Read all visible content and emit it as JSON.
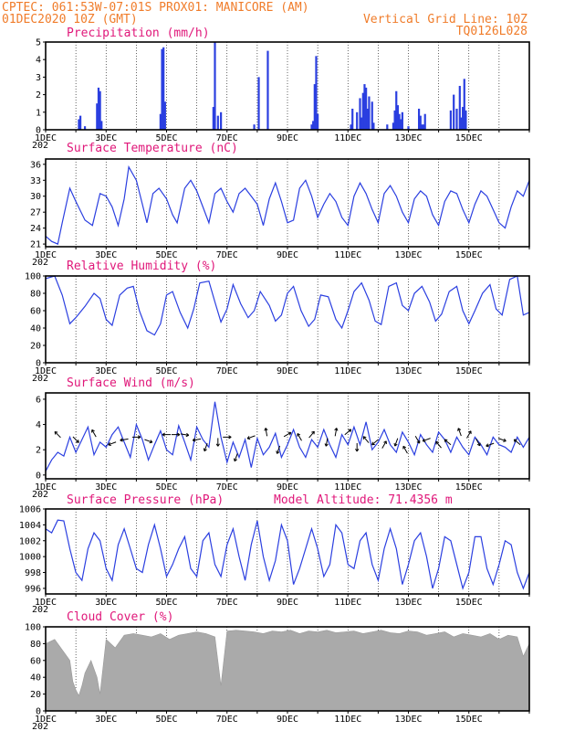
{
  "header": {
    "left_line1": "CPTEC:  061:53W-07:01S  PROX01: MANICORE (AM)",
    "left_line2": "01DEC2020 10Z (GMT)",
    "right_line2": "Vertical Grid Line: 10Z",
    "right_line3": "TQ0126L028"
  },
  "colors": {
    "header": "#f07c2a",
    "panel_title": "#e0187a",
    "series": "#2b3fe0",
    "cloud": "#aaaaaa",
    "arrow": "#000000"
  },
  "x_axis": {
    "days": 16,
    "tick_labels": [
      "1DEC",
      "3DEC",
      "5DEC",
      "7DEC",
      "9DEC",
      "11DEC",
      "13DEC",
      "15DEC"
    ],
    "year_fragment": "202"
  },
  "chart_data": [
    {
      "type": "bar",
      "title": "Precipitation (mm/h)",
      "ylim": [
        0,
        5
      ],
      "yticks": [
        0,
        1,
        2,
        3,
        4,
        5
      ],
      "x_unit": "days since 01DEC2020 10Z",
      "x": [
        1.1,
        1.15,
        1.3,
        1.7,
        1.75,
        1.8,
        1.85,
        3.8,
        3.85,
        3.9,
        3.95,
        5.55,
        5.6,
        5.7,
        5.8,
        6.9,
        7.05,
        7.35,
        8.8,
        8.85,
        8.9,
        8.95,
        9.0,
        10.1,
        10.15,
        10.3,
        10.4,
        10.45,
        10.5,
        10.55,
        10.6,
        10.65,
        10.7,
        10.8,
        10.85,
        11.3,
        11.5,
        11.55,
        11.6,
        11.65,
        11.7,
        11.75,
        11.8,
        12.0,
        12.35,
        12.4,
        12.45,
        12.5,
        12.55,
        13.4,
        13.5,
        13.6,
        13.7,
        13.75,
        13.8,
        13.85,
        13.9
      ],
      "values": [
        0.6,
        0.8,
        0.2,
        1.5,
        2.4,
        2.2,
        0.5,
        0.9,
        4.6,
        4.7,
        1.6,
        1.3,
        5.0,
        0.8,
        1.0,
        0.3,
        3.0,
        4.5,
        0.3,
        0.5,
        2.6,
        4.2,
        0.9,
        0.3,
        1.2,
        1.0,
        1.8,
        0.7,
        2.1,
        2.6,
        2.4,
        1.2,
        1.9,
        1.6,
        0.4,
        0.3,
        0.4,
        1.1,
        2.2,
        1.4,
        0.9,
        0.6,
        1.0,
        0.2,
        1.2,
        0.8,
        0.3,
        0.3,
        0.9,
        1.1,
        2.0,
        1.2,
        2.5,
        0.7,
        1.3,
        2.9,
        1.1
      ]
    },
    {
      "type": "line",
      "title": "Surface Temperature (nC)",
      "ylim": [
        20.5,
        37
      ],
      "yticks": [
        21,
        24,
        27,
        30,
        33,
        36
      ],
      "x_unit": "days since 01DEC2020 10Z",
      "x": [
        0,
        0.2,
        0.4,
        0.55,
        0.8,
        1.0,
        1.3,
        1.55,
        1.8,
        2.0,
        2.2,
        2.4,
        2.6,
        2.75,
        3.0,
        3.2,
        3.35,
        3.55,
        3.75,
        4.0,
        4.2,
        4.35,
        4.6,
        4.8,
        5.0,
        5.2,
        5.4,
        5.6,
        5.8,
        6.0,
        6.2,
        6.4,
        6.6,
        6.8,
        7.0,
        7.2,
        7.4,
        7.6,
        7.8,
        8.0,
        8.2,
        8.4,
        8.6,
        8.8,
        9.0,
        9.2,
        9.4,
        9.6,
        9.8,
        10.0,
        10.2,
        10.4,
        10.6,
        10.8,
        11.0,
        11.2,
        11.4,
        11.6,
        11.8,
        12.0,
        12.2,
        12.4,
        12.6,
        12.8,
        13.0,
        13.2,
        13.4,
        13.6,
        13.8,
        14.0,
        14.2,
        14.4,
        14.6,
        14.8,
        15.0,
        15.2,
        15.4,
        15.6,
        15.8,
        16.0
      ],
      "values": [
        22.5,
        21.5,
        21.0,
        25.0,
        31.5,
        29.0,
        25.5,
        24.5,
        30.5,
        30.0,
        28.0,
        24.5,
        29.5,
        35.5,
        33.0,
        28.5,
        25.0,
        30.5,
        31.5,
        29.5,
        26.5,
        25.0,
        31.5,
        33.0,
        31.0,
        28.0,
        25.0,
        30.5,
        31.5,
        29.0,
        27.0,
        30.5,
        31.5,
        30.0,
        28.5,
        24.5,
        29.5,
        32.5,
        29.0,
        25.0,
        25.5,
        31.5,
        33.0,
        30.0,
        26.0,
        28.5,
        30.5,
        29.0,
        26.0,
        24.5,
        30.0,
        32.5,
        30.5,
        27.5,
        25.0,
        30.5,
        32.0,
        30.0,
        27.0,
        25.0,
        29.5,
        31.0,
        30.0,
        26.5,
        24.5,
        29.0,
        31.0,
        30.5,
        27.5,
        25.0,
        28.5,
        31.0,
        30.0,
        27.5,
        25.0,
        24.0,
        28.0,
        31.0,
        30.0,
        33.0
      ]
    },
    {
      "type": "line",
      "title": "Relative Humidity (%)",
      "ylim": [
        0,
        100
      ],
      "yticks": [
        0,
        20,
        40,
        60,
        80,
        100
      ],
      "x_unit": "days since 01DEC2020 10Z",
      "x": [
        0,
        0.3,
        0.55,
        0.8,
        1.0,
        1.3,
        1.6,
        1.8,
        2.0,
        2.2,
        2.45,
        2.7,
        2.9,
        3.1,
        3.35,
        3.6,
        3.8,
        4.0,
        4.2,
        4.45,
        4.7,
        4.9,
        5.1,
        5.4,
        5.6,
        5.8,
        6.0,
        6.2,
        6.45,
        6.7,
        6.9,
        7.1,
        7.4,
        7.6,
        7.8,
        8.0,
        8.2,
        8.45,
        8.7,
        8.9,
        9.1,
        9.35,
        9.6,
        9.8,
        10.0,
        10.2,
        10.45,
        10.7,
        10.9,
        11.1,
        11.35,
        11.6,
        11.8,
        12.0,
        12.2,
        12.45,
        12.7,
        12.9,
        13.1,
        13.35,
        13.6,
        13.8,
        14.0,
        14.2,
        14.45,
        14.7,
        14.9,
        15.1,
        15.35,
        15.6,
        15.8,
        16.0
      ],
      "values": [
        97,
        100,
        78,
        45,
        52,
        65,
        80,
        74,
        50,
        43,
        78,
        86,
        88,
        60,
        37,
        32,
        45,
        78,
        82,
        58,
        40,
        62,
        92,
        94,
        70,
        47,
        62,
        90,
        68,
        52,
        60,
        82,
        66,
        48,
        55,
        80,
        88,
        60,
        42,
        50,
        78,
        76,
        50,
        40,
        60,
        82,
        92,
        72,
        48,
        44,
        88,
        92,
        66,
        60,
        80,
        88,
        70,
        48,
        56,
        82,
        88,
        60,
        45,
        60,
        80,
        90,
        62,
        55,
        96,
        100,
        55,
        58
      ]
    },
    {
      "type": "line",
      "title": "Surface Wind (m/s)",
      "ylim": [
        -0.3,
        6.5
      ],
      "yticks": [
        0,
        2,
        4,
        6
      ],
      "x_unit": "days since 01DEC2020 10Z",
      "x": [
        0,
        0.2,
        0.4,
        0.6,
        0.8,
        1.0,
        1.2,
        1.4,
        1.6,
        1.8,
        2.0,
        2.2,
        2.4,
        2.6,
        2.8,
        3.0,
        3.2,
        3.4,
        3.6,
        3.8,
        4.0,
        4.2,
        4.4,
        4.6,
        4.8,
        5.0,
        5.2,
        5.4,
        5.6,
        5.8,
        6.0,
        6.2,
        6.4,
        6.6,
        6.8,
        7.0,
        7.2,
        7.4,
        7.6,
        7.8,
        8.0,
        8.2,
        8.4,
        8.6,
        8.8,
        9.0,
        9.2,
        9.4,
        9.6,
        9.8,
        10.0,
        10.2,
        10.4,
        10.6,
        10.8,
        11.0,
        11.2,
        11.4,
        11.6,
        11.8,
        12.0,
        12.2,
        12.4,
        12.6,
        12.8,
        13.0,
        13.2,
        13.4,
        13.6,
        13.8,
        14.0,
        14.2,
        14.4,
        14.6,
        14.8,
        15.0,
        15.2,
        15.4,
        15.6,
        15.8,
        16.0
      ],
      "values": [
        0.3,
        1.2,
        1.8,
        1.5,
        3.0,
        1.8,
        2.8,
        3.8,
        1.6,
        2.6,
        2.2,
        3.2,
        3.8,
        2.6,
        1.4,
        4.0,
        2.8,
        1.2,
        2.4,
        3.5,
        2.0,
        1.6,
        3.9,
        2.6,
        1.2,
        3.8,
        2.8,
        2.2,
        5.8,
        3.0,
        1.0,
        2.6,
        1.4,
        2.8,
        0.6,
        2.9,
        1.6,
        2.2,
        3.3,
        1.4,
        2.4,
        3.6,
        2.2,
        1.4,
        2.8,
        2.2,
        3.6,
        2.4,
        1.4,
        3.2,
        2.4,
        3.8,
        2.4,
        4.2,
        2.0,
        2.6,
        3.6,
        2.4,
        1.8,
        3.4,
        2.6,
        1.6,
        3.2,
        2.4,
        1.8,
        3.4,
        2.8,
        1.8,
        3.0,
        2.2,
        1.6,
        3.0,
        2.4,
        1.6,
        3.0,
        2.4,
        2.2,
        1.8,
        3.0,
        2.2,
        3.0
      ],
      "arrows_x": [
        0.4,
        1.0,
        1.6,
        2.2,
        2.6,
        3.0,
        3.4,
        4.0,
        4.3,
        4.6,
        5.0,
        5.3,
        5.7,
        6.0,
        6.3,
        6.8,
        7.3,
        7.7,
        8.0,
        8.4,
        8.8,
        9.3,
        9.6,
        10.0,
        10.3,
        10.6,
        10.9,
        11.2,
        11.6,
        11.9,
        12.3,
        12.6,
        13.0,
        13.3,
        13.7,
        14.0,
        14.3,
        14.7,
        15.1,
        15.6
      ],
      "arrows_y": [
        3.2,
        2.8,
        3.3,
        2.5,
        2.8,
        3.0,
        2.7,
        3.2,
        3.2,
        3.2,
        2.8,
        2.2,
        2.6,
        3.0,
        1.4,
        3.0,
        3.4,
        2.0,
        3.2,
        3.0,
        3.2,
        2.6,
        3.4,
        3.4,
        2.2,
        2.8,
        2.6,
        2.4,
        2.6,
        2.0,
        2.8,
        2.8,
        2.4,
        2.6,
        3.4,
        3.2,
        2.6,
        2.4,
        2.8,
        2.6
      ],
      "arrows_dir": [
        135,
        315,
        120,
        200,
        190,
        0,
        340,
        180,
        0,
        350,
        190,
        250,
        270,
        0,
        250,
        200,
        100,
        250,
        30,
        120,
        50,
        260,
        80,
        40,
        270,
        130,
        220,
        60,
        250,
        120,
        300,
        200,
        130,
        140,
        110,
        60,
        300,
        200,
        340,
        140
      ]
    },
    {
      "type": "line",
      "title": "Surface Pressure (hPa)",
      "annotation": "Model Altitude: 71.4356 m",
      "ylim": [
        995.3,
        1006
      ],
      "yticks": [
        996,
        998,
        1000,
        1002,
        1004,
        1006
      ],
      "x_unit": "days since 01DEC2020 10Z",
      "x": [
        0,
        0.2,
        0.4,
        0.6,
        0.8,
        1.0,
        1.2,
        1.4,
        1.6,
        1.8,
        2.0,
        2.2,
        2.4,
        2.6,
        2.8,
        3.0,
        3.2,
        3.4,
        3.6,
        3.8,
        4.0,
        4.2,
        4.4,
        4.6,
        4.8,
        5.0,
        5.2,
        5.4,
        5.6,
        5.8,
        6.0,
        6.2,
        6.4,
        6.6,
        6.8,
        7.0,
        7.2,
        7.4,
        7.6,
        7.8,
        8.0,
        8.2,
        8.4,
        8.6,
        8.8,
        9.0,
        9.2,
        9.4,
        9.6,
        9.8,
        10.0,
        10.2,
        10.4,
        10.6,
        10.8,
        11.0,
        11.2,
        11.4,
        11.6,
        11.8,
        12.0,
        12.2,
        12.4,
        12.6,
        12.8,
        13.0,
        13.2,
        13.4,
        13.6,
        13.8,
        14.0,
        14.2,
        14.4,
        14.6,
        14.8,
        15.0,
        15.2,
        15.4,
        15.6,
        15.8,
        16.0
      ],
      "values": [
        1003.5,
        1003.0,
        1004.6,
        1004.5,
        1001.0,
        998.0,
        997.0,
        1001.0,
        1003.0,
        1002.0,
        998.5,
        997.0,
        1001.5,
        1003.5,
        1001.0,
        998.5,
        998.0,
        1001.5,
        1004.0,
        1001.0,
        997.5,
        999.0,
        1001.0,
        1002.5,
        998.5,
        997.5,
        1002.0,
        1003.0,
        999.0,
        997.5,
        1001.5,
        1003.5,
        1000.0,
        997.0,
        1001.5,
        1004.5,
        1000.0,
        997.0,
        999.5,
        1004.0,
        1002.0,
        996.5,
        998.5,
        1001.0,
        1003.5,
        1001.0,
        997.5,
        999.0,
        1004.0,
        1003.0,
        999.0,
        998.5,
        1002.0,
        1003.0,
        999.0,
        997.0,
        1001.0,
        1003.5,
        1001.0,
        996.5,
        999.0,
        1002.0,
        1003.0,
        1000.0,
        996.0,
        998.5,
        1002.5,
        1002.0,
        999.0,
        996.0,
        998.0,
        1002.5,
        1002.5,
        998.5,
        996.5,
        999.0,
        1002.0,
        1001.5,
        998.0,
        996.0,
        998.0
      ]
    },
    {
      "type": "area",
      "title": "Cloud Cover (%)",
      "ylim": [
        0,
        100
      ],
      "yticks": [
        0,
        20,
        40,
        60,
        80,
        100
      ],
      "x_unit": "days since 01DEC2020 10Z",
      "x": [
        0,
        0.3,
        0.6,
        0.8,
        0.9,
        1.0,
        1.1,
        1.2,
        1.3,
        1.5,
        1.7,
        1.8,
        2.0,
        2.3,
        2.6,
        2.9,
        3.2,
        3.5,
        3.8,
        4.1,
        4.4,
        4.7,
        5.0,
        5.3,
        5.6,
        5.8,
        6.0,
        6.3,
        6.6,
        6.9,
        7.2,
        7.5,
        7.8,
        8.1,
        8.4,
        8.7,
        9.0,
        9.3,
        9.6,
        9.9,
        10.2,
        10.5,
        10.8,
        11.1,
        11.4,
        11.7,
        12.0,
        12.3,
        12.6,
        12.9,
        13.2,
        13.5,
        13.8,
        14.1,
        14.4,
        14.7,
        15.0,
        15.3,
        15.6,
        15.8,
        16.0
      ],
      "values": [
        80,
        85,
        70,
        60,
        35,
        25,
        18,
        30,
        45,
        60,
        40,
        20,
        85,
        75,
        90,
        92,
        90,
        88,
        92,
        85,
        90,
        92,
        94,
        92,
        88,
        30,
        95,
        96,
        95,
        94,
        92,
        95,
        94,
        96,
        92,
        95,
        94,
        96,
        93,
        94,
        95,
        92,
        94,
        96,
        93,
        92,
        95,
        94,
        90,
        92,
        94,
        88,
        92,
        90,
        88,
        92,
        85,
        90,
        88,
        65,
        80
      ]
    }
  ],
  "panels": [
    {
      "title": "Precipitation (mm/h)"
    },
    {
      "title": "Surface Temperature (nC)"
    },
    {
      "title": "Relative Humidity (%)"
    },
    {
      "title": "Surface Wind (m/s)"
    },
    {
      "title": "Surface Pressure (hPa)",
      "annotation": "Model Altitude: 71.4356 m"
    },
    {
      "title": "Cloud Cover (%)"
    }
  ]
}
